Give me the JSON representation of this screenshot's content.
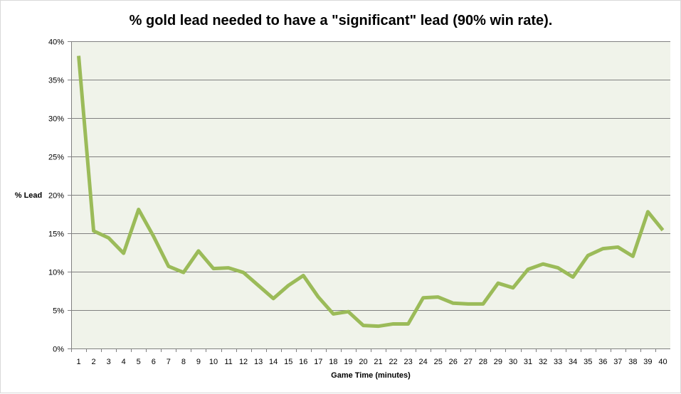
{
  "chart_data": {
    "type": "line",
    "title": "% gold lead needed to have a \"significant\" lead (90% win rate).",
    "xlabel": "Game Time (minutes)",
    "ylabel": "% Lead",
    "ylim": [
      0,
      40
    ],
    "yticks": [
      "0%",
      "5%",
      "10%",
      "15%",
      "20%",
      "25%",
      "30%",
      "35%",
      "40%"
    ],
    "grid": true,
    "legend": "none",
    "colors": {
      "line": "#9bbb59",
      "plot_bg": "#f0f3ea",
      "grid": "#808080"
    },
    "categories": [
      "1",
      "2",
      "3",
      "4",
      "5",
      "6",
      "7",
      "8",
      "9",
      "10",
      "11",
      "12",
      "13",
      "14",
      "15",
      "16",
      "17",
      "18",
      "19",
      "20",
      "21",
      "22",
      "23",
      "24",
      "25",
      "26",
      "27",
      "28",
      "29",
      "30",
      "31",
      "32",
      "33",
      "34",
      "35",
      "36",
      "37",
      "38",
      "39",
      "40"
    ],
    "values": [
      38.1,
      15.3,
      14.4,
      12.4,
      18.1,
      14.6,
      10.7,
      9.9,
      12.7,
      10.4,
      10.5,
      9.9,
      8.2,
      6.5,
      8.2,
      9.5,
      6.7,
      4.5,
      4.8,
      3.0,
      2.9,
      3.2,
      3.2,
      6.6,
      6.7,
      5.9,
      5.8,
      5.8,
      8.5,
      7.9,
      10.3,
      11.0,
      10.5,
      9.3,
      12.1,
      13.0,
      13.2,
      12.0,
      17.8,
      15.4
    ]
  }
}
